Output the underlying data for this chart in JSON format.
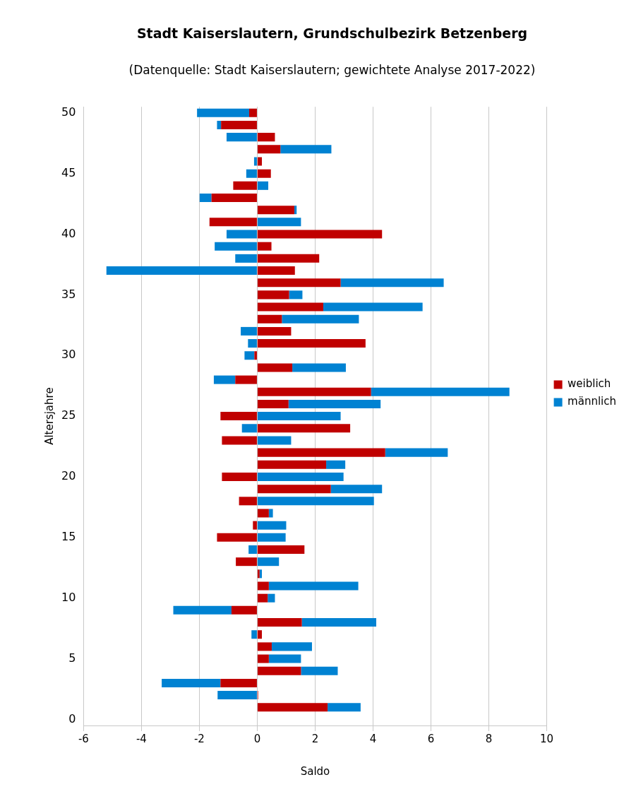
{
  "chart_data": {
    "type": "bar",
    "orientation": "horizontal",
    "stacked": true,
    "title": "Stadt Kaiserslautern, Grundschulbezirk Betzenberg",
    "subtitle": "(Datenquelle: Stadt Kaiserslautern; gewichtete Analyse 2017-2022)",
    "xlabel": "Saldo",
    "ylabel": "Altersjahre",
    "categories": [
      "50",
      null,
      null,
      null,
      null,
      "45",
      null,
      null,
      null,
      null,
      "40",
      null,
      null,
      null,
      null,
      "35",
      null,
      null,
      null,
      null,
      "30",
      null,
      null,
      null,
      null,
      "25",
      null,
      null,
      null,
      null,
      "20",
      null,
      null,
      null,
      null,
      "15",
      null,
      null,
      null,
      null,
      "10",
      null,
      null,
      null,
      null,
      "5",
      null,
      null,
      null,
      null,
      "0"
    ],
    "series": [
      {
        "name": "weiblich",
        "color": "#c00000",
        "values": [
          -0.28,
          -1.25,
          0.61,
          0.8,
          0.16,
          0.47,
          -0.83,
          -1.58,
          1.28,
          -1.65,
          4.31,
          0.49,
          2.14,
          1.3,
          2.88,
          1.1,
          2.28,
          0.85,
          1.17,
          3.74,
          -0.1,
          1.21,
          -0.76,
          3.93,
          1.08,
          -1.27,
          3.21,
          -1.22,
          4.42,
          2.38,
          -1.22,
          2.54,
          -0.63,
          0.4,
          -0.15,
          -1.39,
          1.63,
          -0.74,
          0.08,
          0.4,
          0.36,
          -0.89,
          1.54,
          0.16,
          0.5,
          0.4,
          1.51,
          -1.27,
          0.03,
          2.43,
          null
        ]
      },
      {
        "name": "männlich",
        "color": "#0082d2",
        "values": [
          -1.8,
          -0.14,
          -1.06,
          1.76,
          -0.11,
          -0.38,
          0.38,
          -0.41,
          0.08,
          1.51,
          -1.06,
          -1.47,
          -0.76,
          -5.21,
          3.56,
          0.46,
          3.43,
          2.66,
          -0.57,
          -0.32,
          -0.34,
          1.85,
          -0.74,
          4.78,
          3.18,
          2.88,
          -0.53,
          1.17,
          2.16,
          0.66,
          2.98,
          1.77,
          4.03,
          0.14,
          1.0,
          0.98,
          -0.3,
          0.75,
          0.08,
          3.09,
          0.25,
          -2.01,
          2.57,
          -0.2,
          1.39,
          1.11,
          1.27,
          -2.03,
          -1.37,
          1.14,
          null
        ]
      }
    ],
    "xlim": [
      -6,
      10
    ],
    "xticks": [
      -6,
      -4,
      -2,
      0,
      2,
      4,
      6,
      8,
      10
    ],
    "grid": "x",
    "legend": "right"
  }
}
